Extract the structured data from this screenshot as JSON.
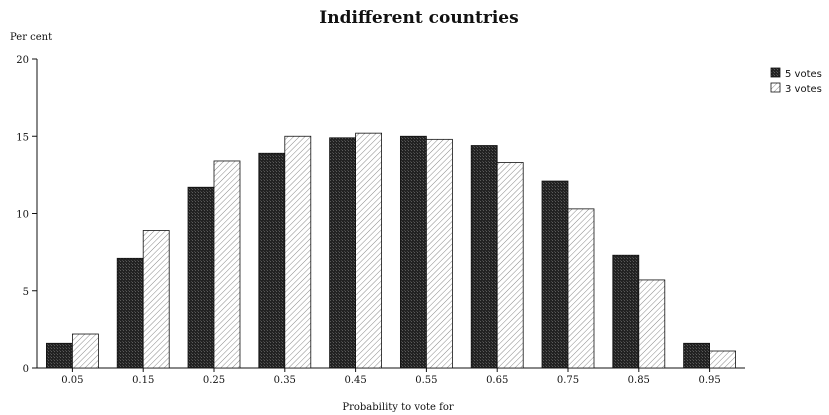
{
  "chart_data": {
    "type": "bar",
    "title": "Indifferent countries",
    "ylabel": "Per cent",
    "xlabel": "Probability to vote for",
    "ylim": [
      0,
      20
    ],
    "yticks": [
      "0",
      "5",
      "10",
      "15",
      "20"
    ],
    "categories": [
      "0.05",
      "0.15",
      "0.25",
      "0.35",
      "0.45",
      "0.55",
      "0.65",
      "0.75",
      "0.85",
      "0.95"
    ],
    "series": [
      {
        "name": "5 votes",
        "color": "#1a1a1a",
        "values": [
          1.6,
          7.1,
          11.7,
          13.9,
          14.9,
          15.0,
          14.4,
          12.1,
          7.3,
          1.6
        ]
      },
      {
        "name": "3 votes",
        "color": "#ffffff",
        "values": [
          2.2,
          8.9,
          13.4,
          15.0,
          15.2,
          14.8,
          13.3,
          10.3,
          5.7,
          1.1
        ]
      }
    ],
    "legend_position": "top-right",
    "grid": false
  }
}
